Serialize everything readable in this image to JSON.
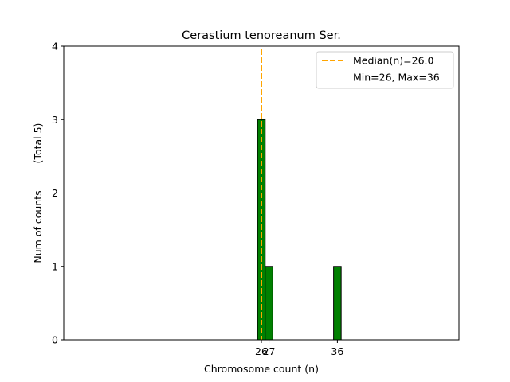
{
  "chart_data": {
    "type": "bar",
    "title": "Cerastium tenoreanum Ser.",
    "xlabel": "Chromosome count (n)",
    "ylabel": "Num of counts",
    "ylabel_secondary": "(Total 5)",
    "xlim": [
      0,
      52
    ],
    "ylim": [
      0,
      4
    ],
    "yticks": [
      0,
      1,
      2,
      3,
      4
    ],
    "xticks": [
      26,
      27,
      36
    ],
    "bins": [
      {
        "x": 26,
        "value": 3
      },
      {
        "x": 27,
        "value": 1
      },
      {
        "x": 36,
        "value": 1
      }
    ],
    "baseline_extent": [
      0,
      40
    ],
    "bar_color": "#008000",
    "bar_edge_color": "#000000",
    "median": {
      "value": 26.0,
      "color": "#FFA500",
      "style": "dashed"
    },
    "legend": {
      "placement": "top-right",
      "entries": [
        {
          "label": "Median(n)=26.0",
          "type": "line",
          "color": "#FFA500"
        },
        {
          "label": "Min=26, Max=36",
          "type": "none"
        }
      ]
    },
    "grid": false
  }
}
